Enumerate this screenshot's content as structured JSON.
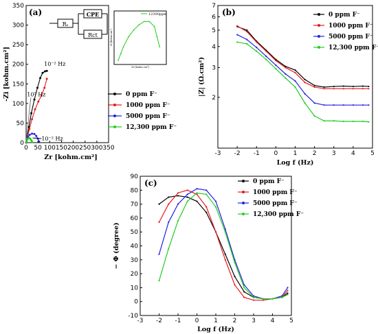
{
  "chart_data": [
    {
      "panel": "(a)",
      "type": "scatter",
      "xlabel": "Zr [kohm.cm²]",
      "ylabel": "-Zi [kohm.cm²]",
      "xlim": [
        0,
        350
      ],
      "ylim": [
        0,
        350
      ],
      "xticks": [
        "0",
        "50",
        "100",
        "150",
        "200",
        "250",
        "300",
        "350"
      ],
      "yticks": [
        "0",
        "50",
        "100",
        "150",
        "200",
        "250",
        "300",
        "350"
      ],
      "annotations": [
        "10⁻² Hz",
        "10⁵ Hz",
        "10⁻² Hz"
      ],
      "circuit": {
        "rs": "Rₛ",
        "cpe": "CPE",
        "rct": "Rct"
      },
      "inset": {
        "legend": "12300ppm",
        "xlabel": "Zr [kohm.cm²]",
        "ylabel": "-Zi [kohm.cm²]"
      },
      "series": [
        {
          "name": "0 ppm F⁻",
          "color": "#000000",
          "points": [
            [
              0,
              0
            ],
            [
              5,
              15
            ],
            [
              12,
              40
            ],
            [
              22,
              75
            ],
            [
              35,
              110
            ],
            [
              48,
              140
            ],
            [
              60,
              165
            ],
            [
              70,
              178
            ],
            [
              80,
              182
            ],
            [
              88,
              183
            ]
          ]
        },
        {
          "name": "1000 ppm F⁻",
          "color": "#e41a1c",
          "points": [
            [
              0,
              0
            ],
            [
              6,
              15
            ],
            [
              14,
              35
            ],
            [
              25,
              60
            ],
            [
              38,
              85
            ],
            [
              52,
              105
            ],
            [
              65,
              120
            ],
            [
              78,
              140
            ],
            [
              88,
              163
            ]
          ]
        },
        {
          "name": "5000 ppm F⁻",
          "color": "#2020e0",
          "points": [
            [
              0,
              0
            ],
            [
              3,
              8
            ],
            [
              8,
              15
            ],
            [
              15,
              20
            ],
            [
              25,
              23
            ],
            [
              35,
              22
            ],
            [
              43,
              17
            ],
            [
              50,
              10
            ],
            [
              55,
              3
            ]
          ]
        },
        {
          "name": "12,300 ppm F⁻",
          "color": "#22cc22",
          "points": [
            [
              0,
              0
            ],
            [
              2,
              4
            ],
            [
              5,
              8
            ],
            [
              9,
              11
            ],
            [
              13,
              12
            ],
            [
              17,
              10
            ],
            [
              21,
              7
            ],
            [
              24,
              4
            ],
            [
              26,
              1
            ]
          ]
        }
      ]
    },
    {
      "panel": "(b)",
      "type": "line",
      "xlabel": "Log f (Hz)",
      "ylabel": "|Z| (Ω.cm²)",
      "xlim": [
        -3,
        5
      ],
      "xticks": [
        "-3",
        "-2",
        "-1",
        "0",
        "1",
        "2",
        "3",
        "4",
        "5"
      ],
      "yticks": [
        "2",
        "3",
        "4",
        "5",
        "6",
        "7"
      ],
      "ylog": true,
      "series": [
        {
          "name": "0 ppm F⁻",
          "color": "#000000",
          "x": [
            -2,
            -1.5,
            -1,
            -0.5,
            0,
            0.5,
            1,
            1.5,
            2,
            2.5,
            3,
            3.5,
            4,
            4.5,
            4.8
          ],
          "y": [
            5.25,
            5.0,
            4.3,
            3.8,
            3.35,
            3.05,
            2.9,
            2.55,
            2.35,
            2.3,
            2.32,
            2.33,
            2.32,
            2.33,
            2.32
          ]
        },
        {
          "name": "1000 ppm F⁻",
          "color": "#e41a1c",
          "x": [
            -2,
            -1.5,
            -1,
            -0.5,
            0,
            0.5,
            1,
            1.5,
            2,
            2.5,
            3,
            3.5,
            4,
            4.5,
            4.8
          ],
          "y": [
            5.3,
            4.9,
            4.25,
            3.75,
            3.3,
            3.0,
            2.8,
            2.45,
            2.3,
            2.25,
            2.25,
            2.25,
            2.25,
            2.25,
            2.25
          ]
        },
        {
          "name": "5000 ppm F⁻",
          "color": "#2020e0",
          "x": [
            -2,
            -1.5,
            -1,
            -0.5,
            0,
            0.5,
            1,
            1.5,
            2,
            2.5,
            3,
            3.5,
            4,
            4.5,
            4.8
          ],
          "y": [
            4.7,
            4.4,
            3.95,
            3.5,
            3.1,
            2.75,
            2.5,
            2.1,
            1.85,
            1.8,
            1.8,
            1.8,
            1.8,
            1.8,
            1.8
          ]
        },
        {
          "name": "12,300 ppm F⁻",
          "color": "#22cc22",
          "x": [
            -2,
            -1.5,
            -1,
            -0.5,
            0,
            0.5,
            1,
            1.5,
            2,
            2.5,
            3,
            3.5,
            4,
            4.5,
            4.8
          ],
          "y": [
            4.25,
            4.15,
            3.75,
            3.35,
            2.95,
            2.6,
            2.3,
            1.85,
            1.55,
            1.45,
            1.45,
            1.44,
            1.44,
            1.44,
            1.43
          ]
        }
      ]
    },
    {
      "panel": "(c)",
      "type": "line",
      "xlabel": "Log f (Hz)",
      "ylabel": "− Φ   (degree)",
      "xlim": [
        -3,
        5
      ],
      "ylim": [
        -10,
        90
      ],
      "xticks": [
        "-3",
        "-2",
        "-1",
        "0",
        "1",
        "2",
        "3",
        "4",
        "5"
      ],
      "yticks": [
        "-10",
        "0",
        "10",
        "20",
        "30",
        "40",
        "50",
        "60",
        "70",
        "80",
        "90"
      ],
      "series": [
        {
          "name": "0 ppm F⁻",
          "color": "#000000",
          "x": [
            -2,
            -1.5,
            -1,
            -0.5,
            0,
            0.5,
            1,
            1.5,
            2,
            2.5,
            3,
            3.5,
            4,
            4.5,
            4.8
          ],
          "y": [
            70,
            75,
            76,
            75,
            72,
            64,
            50,
            34,
            18,
            7,
            3,
            2,
            2,
            3,
            6
          ]
        },
        {
          "name": "1000 ppm F⁻",
          "color": "#e41a1c",
          "x": [
            -2,
            -1.5,
            -1,
            -0.5,
            0,
            0.5,
            1,
            1.5,
            2,
            2.5,
            3,
            3.5,
            4,
            4.5,
            4.8
          ],
          "y": [
            57,
            70,
            78,
            80,
            77,
            68,
            50,
            30,
            12,
            3,
            1,
            1,
            2,
            3,
            8
          ]
        },
        {
          "name": "5000 ppm F⁻",
          "color": "#2020e0",
          "x": [
            -2,
            -1.5,
            -1,
            -0.5,
            0,
            0.5,
            1,
            1.5,
            2,
            2.5,
            3,
            3.5,
            4,
            4.5,
            4.8
          ],
          "y": [
            34,
            57,
            70,
            77,
            81,
            80,
            72,
            52,
            30,
            12,
            4,
            2,
            2,
            4,
            10
          ]
        },
        {
          "name": "12,300 ppm F⁻",
          "color": "#22cc22",
          "x": [
            -2,
            -1.5,
            -1,
            -0.5,
            0,
            0.5,
            1,
            1.5,
            2,
            2.5,
            3,
            3.5,
            4,
            4.5,
            4.8
          ],
          "y": [
            15,
            38,
            58,
            72,
            78,
            77,
            68,
            50,
            28,
            10,
            3,
            2,
            2,
            3,
            5
          ]
        }
      ]
    }
  ]
}
